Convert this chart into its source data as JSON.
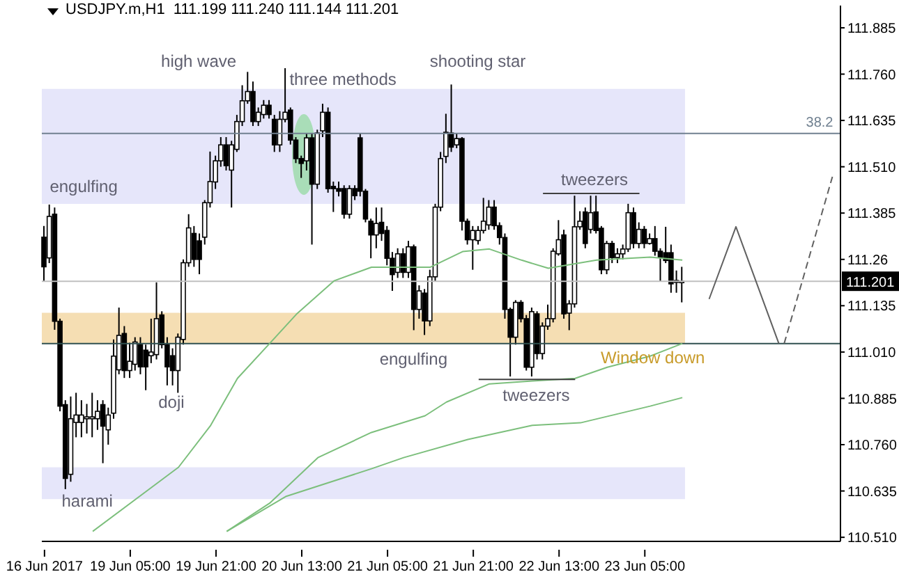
{
  "chart_data": {
    "type": "candlestick",
    "title": "USDJPY.m,H1  111.199 111.240 111.144 111.201",
    "categories": [
      "16 Jun 2017",
      null,
      null,
      null,
      null,
      null,
      null,
      null,
      null,
      null,
      null,
      null,
      null,
      null,
      null,
      null,
      "19 Jun 05:00",
      null,
      null,
      null,
      null,
      null,
      null,
      null,
      null,
      null,
      null,
      null,
      null,
      null,
      null,
      null,
      "19 Jun 21:00",
      null,
      null,
      null,
      null,
      null,
      null,
      null,
      null,
      null,
      null,
      null,
      null,
      null,
      null,
      null,
      "20 Jun 13:00",
      null,
      null,
      null,
      null,
      null,
      null,
      null,
      null,
      null,
      null,
      null,
      null,
      null,
      null,
      null,
      "21 Jun 05:00",
      null,
      null,
      null,
      null,
      null,
      null,
      null,
      null,
      null,
      null,
      null,
      null,
      null,
      null,
      null,
      "21 Jun 21:00",
      null,
      null,
      null,
      null,
      null,
      null,
      null,
      null,
      null,
      null,
      null,
      null,
      null,
      null,
      null,
      "22 Jun 13:00",
      null,
      null,
      null,
      null,
      null,
      null,
      null,
      null,
      null,
      null,
      null,
      null,
      null,
      null,
      null,
      "23 Jun 05:00",
      null,
      null,
      null,
      null,
      null,
      null,
      null,
      null,
      null,
      null,
      null,
      null,
      null,
      null,
      null,
      null,
      null,
      null,
      null,
      null,
      null,
      null,
      null,
      null,
      null,
      null,
      null,
      null,
      null,
      null,
      null,
      null,
      null,
      null,
      null,
      null
    ],
    "ohlc": [
      [
        111.32,
        111.35,
        111.2,
        111.24
      ],
      [
        111.264,
        111.408,
        111.25,
        111.376
      ],
      [
        111.382,
        111.4,
        111.07,
        111.093
      ],
      [
        111.093,
        111.1,
        110.85,
        110.864
      ],
      [
        110.868,
        110.88,
        110.64,
        110.669
      ],
      [
        110.68,
        110.89,
        110.66,
        110.83
      ],
      [
        110.82,
        110.9,
        110.78,
        110.84
      ],
      [
        110.82,
        110.88,
        110.78,
        110.84
      ],
      [
        110.83,
        110.87,
        110.79,
        110.835
      ],
      [
        110.83,
        110.9,
        110.78,
        110.835
      ],
      [
        110.83,
        110.88,
        110.8,
        110.85
      ],
      [
        110.868,
        110.88,
        110.71,
        110.81
      ],
      [
        110.8,
        110.86,
        110.76,
        110.84
      ],
      [
        110.845,
        111.044,
        110.83,
        110.999
      ],
      [
        110.962,
        111.13,
        110.95,
        111.055
      ],
      [
        111.06,
        111.08,
        110.94,
        110.96
      ],
      [
        110.96,
        111.035,
        110.94,
        110.985
      ],
      [
        110.977,
        111.05,
        110.96,
        111.037
      ],
      [
        111.03,
        111.05,
        110.95,
        110.97
      ],
      [
        111.015,
        111.03,
        110.907,
        110.97
      ],
      [
        111.0,
        111.1,
        110.98,
        111.01
      ],
      [
        111.003,
        111.198,
        110.99,
        111.1
      ],
      [
        111.11,
        111.12,
        111.02,
        111.03
      ],
      [
        111.03,
        111.05,
        110.92,
        110.97
      ],
      [
        111.0,
        111.02,
        110.92,
        110.96
      ],
      [
        110.96,
        111.06,
        110.9,
        111.05
      ],
      [
        111.044,
        111.26,
        111.03,
        111.251
      ],
      [
        111.251,
        111.382,
        111.24,
        111.345
      ],
      [
        111.33,
        111.35,
        111.24,
        111.26
      ],
      [
        111.31,
        111.33,
        111.22,
        111.26
      ],
      [
        111.32,
        111.42,
        111.3,
        111.413
      ],
      [
        111.413,
        111.551,
        111.4,
        111.47
      ],
      [
        111.469,
        111.54,
        111.45,
        111.526
      ],
      [
        111.526,
        111.59,
        111.51,
        111.569
      ],
      [
        111.569,
        111.59,
        111.5,
        111.513
      ],
      [
        111.501,
        111.58,
        111.4,
        111.569
      ],
      [
        111.557,
        111.65,
        111.55,
        111.632
      ],
      [
        111.632,
        111.73,
        111.62,
        111.688
      ],
      [
        111.688,
        111.766,
        111.68,
        111.713
      ],
      [
        111.713,
        111.74,
        111.62,
        111.632
      ],
      [
        111.632,
        111.67,
        111.62,
        111.657
      ],
      [
        111.651,
        111.69,
        111.64,
        111.676
      ],
      [
        111.676,
        111.69,
        111.64,
        111.651
      ],
      [
        111.638,
        111.65,
        111.55,
        111.569
      ],
      [
        111.569,
        111.66,
        111.55,
        111.638
      ],
      [
        111.638,
        111.776,
        111.63,
        111.657
      ],
      [
        111.663,
        111.67,
        111.57,
        111.582
      ],
      [
        111.582,
        111.59,
        111.52,
        111.532
      ],
      [
        111.532,
        111.54,
        111.48,
        111.519
      ],
      [
        111.526,
        111.6,
        111.5,
        111.588
      ],
      [
        111.588,
        111.6,
        111.3,
        111.463
      ],
      [
        111.463,
        111.61,
        111.45,
        111.601
      ],
      [
        111.607,
        111.68,
        111.59,
        111.657
      ],
      [
        111.657,
        111.67,
        111.44,
        111.451
      ],
      [
        111.457,
        111.47,
        111.388,
        111.451
      ],
      [
        111.451,
        111.47,
        111.43,
        111.444
      ],
      [
        111.451,
        111.46,
        111.37,
        111.382
      ],
      [
        111.382,
        111.46,
        111.37,
        111.451
      ],
      [
        111.451,
        111.46,
        111.42,
        111.432
      ],
      [
        111.588,
        111.6,
        111.43,
        111.444
      ],
      [
        111.444,
        111.45,
        111.36,
        111.369
      ],
      [
        111.363,
        111.37,
        111.263,
        111.326
      ],
      [
        111.326,
        111.4,
        111.29,
        111.357
      ],
      [
        111.36,
        111.4,
        111.31,
        111.33
      ],
      [
        111.338,
        111.35,
        111.244,
        111.263
      ],
      [
        111.263,
        111.28,
        111.175,
        111.219
      ],
      [
        111.225,
        111.29,
        111.21,
        111.275
      ],
      [
        111.275,
        111.29,
        111.21,
        111.225
      ],
      [
        111.225,
        111.31,
        111.21,
        111.294
      ],
      [
        111.294,
        111.3,
        111.069,
        111.125
      ],
      [
        111.125,
        111.19,
        111.1,
        111.175
      ],
      [
        111.169,
        111.18,
        111.056,
        111.094
      ],
      [
        111.094,
        111.232,
        111.08,
        111.213
      ],
      [
        111.213,
        111.41,
        111.2,
        111.401
      ],
      [
        111.401,
        111.55,
        111.39,
        111.532
      ],
      [
        111.538,
        111.653,
        111.52,
        111.603
      ],
      [
        111.601,
        111.732,
        111.55,
        111.563
      ],
      [
        111.569,
        111.6,
        111.56,
        111.586
      ],
      [
        111.586,
        111.59,
        111.338,
        111.363
      ],
      [
        111.363,
        111.37,
        111.3,
        111.313
      ],
      [
        111.313,
        111.35,
        111.232,
        111.338
      ],
      [
        111.311,
        111.35,
        111.3,
        111.338
      ],
      [
        111.338,
        111.426,
        111.33,
        111.363
      ],
      [
        111.353,
        111.42,
        111.34,
        111.401
      ],
      [
        111.401,
        111.42,
        111.34,
        111.351
      ],
      [
        111.351,
        111.36,
        111.3,
        111.319
      ],
      [
        111.319,
        111.33,
        111.1,
        111.125
      ],
      [
        111.125,
        111.13,
        110.944,
        111.05
      ],
      [
        111.05,
        111.15,
        111.03,
        111.144
      ],
      [
        111.144,
        111.15,
        111.09,
        111.1
      ],
      [
        111.1,
        111.11,
        110.96,
        110.969
      ],
      [
        110.969,
        111.13,
        110.944,
        111.119
      ],
      [
        111.113,
        111.12,
        110.99,
        111.006
      ],
      [
        111.006,
        111.09,
        110.99,
        111.08
      ],
      [
        111.08,
        111.138,
        111.07,
        111.1
      ],
      [
        111.1,
        111.29,
        111.09,
        111.282
      ],
      [
        111.275,
        111.366,
        111.27,
        111.313
      ],
      [
        111.326,
        111.34,
        111.1,
        111.113
      ],
      [
        111.115,
        111.15,
        111.069,
        111.14
      ],
      [
        111.14,
        111.432,
        111.13,
        111.348
      ],
      [
        111.348,
        111.39,
        111.34,
        111.363
      ],
      [
        111.388,
        111.4,
        111.29,
        111.303
      ],
      [
        111.341,
        111.432,
        111.33,
        111.386
      ],
      [
        111.388,
        111.432,
        111.33,
        111.338
      ],
      [
        111.344,
        111.35,
        111.22,
        111.232
      ],
      [
        111.232,
        111.31,
        111.22,
        111.303
      ],
      [
        111.303,
        111.31,
        111.25,
        111.265
      ],
      [
        111.265,
        111.29,
        111.25,
        111.275
      ],
      [
        111.275,
        111.3,
        111.26,
        111.288
      ],
      [
        111.288,
        111.41,
        111.28,
        111.386
      ],
      [
        111.386,
        111.4,
        111.29,
        111.303
      ],
      [
        111.303,
        111.36,
        111.29,
        111.341
      ],
      [
        111.341,
        111.35,
        111.29,
        111.303
      ],
      [
        111.303,
        111.33,
        111.3,
        111.316
      ],
      [
        111.316,
        111.35,
        111.27,
        111.282
      ],
      [
        111.282,
        111.29,
        111.2,
        111.265
      ],
      [
        111.278,
        111.348,
        111.25,
        111.257
      ],
      [
        111.278,
        111.3,
        111.17,
        111.194
      ],
      [
        111.203,
        111.23,
        111.17,
        111.198
      ],
      [
        111.199,
        111.24,
        111.144,
        111.201
      ],
      null,
      null,
      null,
      null,
      null,
      null,
      null,
      null,
      null,
      null,
      null,
      null,
      null,
      null,
      null,
      null,
      null,
      null,
      null,
      null,
      null,
      null,
      null,
      null,
      null,
      null,
      null,
      null,
      null
    ],
    "series": [
      {
        "type": "line",
        "color": "#7cbf7c",
        "values": [
          null,
          null,
          null,
          null,
          null,
          null,
          null,
          null,
          null,
          110.526,
          null,
          null,
          null,
          null,
          null,
          null,
          null,
          null,
          null,
          null,
          null,
          null,
          null,
          null,
          null,
          110.699,
          null,
          null,
          null,
          null,
          null,
          110.812,
          null,
          null,
          null,
          null,
          110.939,
          null,
          null,
          null,
          null,
          null,
          111.033,
          null,
          null,
          null,
          null,
          111.112,
          null,
          null,
          null,
          null,
          null,
          null,
          111.202,
          null,
          null,
          null,
          null,
          null,
          null,
          111.239,
          null,
          null,
          null,
          null,
          null,
          null,
          null,
          null,
          null,
          null,
          111.239,
          null,
          null,
          null,
          null,
          null,
          111.281,
          null,
          null,
          null,
          null,
          111.288,
          null,
          null,
          null,
          null,
          null,
          111.258,
          null,
          null,
          null,
          null,
          111.236,
          null,
          null,
          null,
          null,
          null,
          null,
          null,
          null,
          111.258,
          null,
          null,
          null,
          null,
          null,
          null,
          null,
          null,
          null,
          111.266,
          null,
          null,
          null,
          null,
          null,
          111.258,
          null,
          null,
          null,
          null,
          null,
          null,
          null,
          null,
          null,
          null,
          null,
          null,
          null,
          null,
          null,
          null,
          null,
          null,
          null,
          null,
          null,
          null,
          null,
          null,
          null,
          null,
          null,
          null,
          null
        ]
      },
      {
        "type": "line",
        "color": "#7cbf7c",
        "values": [
          null,
          null,
          null,
          null,
          null,
          null,
          null,
          null,
          null,
          null,
          null,
          null,
          null,
          null,
          null,
          null,
          null,
          null,
          null,
          null,
          null,
          null,
          null,
          null,
          null,
          null,
          null,
          null,
          null,
          null,
          null,
          null,
          null,
          null,
          110.526,
          null,
          null,
          null,
          null,
          null,
          null,
          null,
          110.602,
          null,
          null,
          null,
          null,
          null,
          null,
          null,
          null,
          110.725,
          null,
          null,
          null,
          null,
          null,
          null,
          null,
          null,
          null,
          110.793,
          null,
          null,
          null,
          null,
          null,
          null,
          null,
          null,
          null,
          110.838,
          null,
          null,
          null,
          110.875,
          null,
          null,
          null,
          null,
          null,
          null,
          null,
          110.924,
          null,
          null,
          null,
          null,
          null,
          null,
          null,
          110.932,
          null,
          null,
          null,
          null,
          null,
          null,
          null,
          110.939,
          null,
          null,
          null,
          null,
          null,
          110.969,
          null,
          null,
          null,
          null,
          null,
          null,
          null,
          110.999,
          null,
          null,
          null,
          null,
          null,
          111.033,
          null,
          null,
          null,
          null,
          null,
          null,
          null,
          null,
          null,
          null,
          null,
          null,
          null,
          null,
          null,
          null,
          null,
          null,
          null,
          null,
          null,
          null,
          null,
          null,
          null,
          null,
          null,
          null,
          null
        ]
      },
      {
        "type": "line",
        "color": "#7cbf7c",
        "values": [
          null,
          null,
          null,
          null,
          null,
          null,
          null,
          null,
          null,
          null,
          null,
          null,
          null,
          null,
          null,
          null,
          null,
          null,
          null,
          null,
          null,
          null,
          null,
          null,
          null,
          null,
          null,
          null,
          null,
          null,
          null,
          null,
          null,
          null,
          110.526,
          null,
          null,
          null,
          null,
          null,
          null,
          null,
          null,
          null,
          null,
          110.62,
          null,
          null,
          null,
          null,
          null,
          null,
          null,
          null,
          null,
          null,
          null,
          null,
          null,
          null,
          null,
          110.695,
          null,
          null,
          null,
          null,
          null,
          110.725,
          null,
          null,
          null,
          null,
          null,
          null,
          null,
          null,
          null,
          null,
          null,
          110.774,
          null,
          null,
          null,
          null,
          null,
          null,
          null,
          null,
          null,
          null,
          null,
          110.812,
          null,
          null,
          null,
          null,
          null,
          null,
          null,
          null,
          110.819,
          null,
          null,
          null,
          null,
          null,
          null,
          null,
          null,
          null,
          null,
          null,
          null,
          110.864,
          null,
          null,
          null,
          null,
          null,
          110.887,
          null,
          null,
          null,
          null,
          null,
          null,
          null,
          null,
          null,
          null,
          null,
          null,
          null,
          null,
          null,
          null,
          null,
          null,
          null,
          null,
          null,
          null,
          null,
          null,
          null,
          null,
          null,
          null,
          null
        ]
      },
      {
        "type": "line",
        "color": "#404040",
        "values": [
          null,
          null,
          null,
          null,
          null,
          null,
          null,
          null,
          null,
          null,
          null,
          null,
          null,
          null,
          null,
          null,
          null,
          null,
          null,
          null,
          null,
          null,
          null,
          null,
          null,
          null,
          null,
          null,
          null,
          null,
          null,
          null,
          null,
          null,
          null,
          null,
          null,
          null,
          null,
          null,
          null,
          null,
          null,
          null,
          null,
          null,
          null,
          null,
          null,
          null,
          null,
          null,
          null,
          null,
          null,
          null,
          null,
          null,
          null,
          null,
          null,
          null,
          null,
          null,
          null,
          null,
          null,
          null,
          null,
          null,
          null,
          null,
          null,
          null,
          null,
          null,
          null,
          null,
          null,
          null,
          null,
          null,
          null,
          null,
          null,
          null,
          null,
          null,
          null,
          null,
          null,
          null,
          null,
          111.438,
          null,
          null,
          null,
          null,
          null,
          null,
          null,
          null,
          null,
          null,
          null,
          null,
          null,
          null,
          null,
          null,
          null,
          111.438,
          null,
          null,
          null,
          null,
          null,
          null,
          null,
          null,
          null,
          null,
          null,
          null,
          null,
          null,
          null,
          null,
          null,
          null,
          null,
          null,
          null,
          null,
          null,
          null,
          null,
          null,
          null,
          null,
          null,
          null,
          null,
          null,
          null,
          null,
          null,
          null,
          null
        ]
      },
      {
        "type": "line",
        "color": "#404040",
        "values": [
          null,
          null,
          null,
          null,
          null,
          null,
          null,
          null,
          null,
          null,
          null,
          null,
          null,
          null,
          null,
          null,
          null,
          null,
          null,
          null,
          null,
          null,
          null,
          null,
          null,
          null,
          null,
          null,
          null,
          null,
          null,
          null,
          null,
          null,
          null,
          null,
          null,
          null,
          null,
          null,
          null,
          null,
          null,
          null,
          null,
          null,
          null,
          null,
          null,
          null,
          null,
          null,
          null,
          null,
          null,
          null,
          null,
          null,
          null,
          null,
          null,
          null,
          null,
          null,
          null,
          null,
          null,
          null,
          null,
          null,
          null,
          null,
          null,
          null,
          null,
          null,
          null,
          null,
          null,
          null,
          null,
          110.936,
          null,
          null,
          null,
          null,
          null,
          null,
          null,
          null,
          null,
          null,
          null,
          null,
          null,
          null,
          null,
          null,
          null,
          110.936,
          null,
          null,
          null,
          null,
          null,
          null,
          null,
          null,
          null,
          null,
          null,
          null,
          null,
          null,
          null,
          null,
          null,
          null,
          null,
          null,
          null,
          null,
          null,
          null,
          null,
          null,
          null,
          null,
          null,
          null,
          null,
          null,
          null,
          null,
          null,
          null,
          null,
          null,
          null,
          null,
          null,
          null,
          null,
          null,
          null,
          null,
          null,
          null,
          null
        ]
      },
      {
        "type": "line",
        "color": "#606060",
        "line_style": "solid",
        "values": [
          null,
          null,
          null,
          null,
          null,
          null,
          null,
          null,
          null,
          null,
          null,
          null,
          null,
          null,
          null,
          null,
          null,
          null,
          null,
          null,
          null,
          null,
          null,
          null,
          null,
          null,
          null,
          null,
          null,
          null,
          null,
          null,
          null,
          null,
          null,
          null,
          null,
          null,
          null,
          null,
          null,
          null,
          null,
          null,
          null,
          null,
          null,
          null,
          null,
          null,
          null,
          null,
          null,
          null,
          null,
          null,
          null,
          null,
          null,
          null,
          null,
          null,
          null,
          null,
          null,
          null,
          null,
          null,
          null,
          null,
          null,
          null,
          null,
          null,
          null,
          null,
          null,
          null,
          null,
          null,
          null,
          null,
          null,
          null,
          null,
          null,
          null,
          null,
          null,
          null,
          null,
          null,
          null,
          null,
          null,
          null,
          null,
          null,
          null,
          null,
          null,
          null,
          null,
          null,
          null,
          null,
          null,
          null,
          null,
          null,
          null,
          null,
          null,
          null,
          null,
          null,
          null,
          null,
          null,
          null,
          null,
          null,
          null,
          null,
          111.153,
          null,
          null,
          null,
          null,
          111.348,
          null,
          null,
          null,
          null,
          null,
          null,
          null,
          111.033,
          null,
          null,
          null,
          null,
          null,
          null,
          null,
          null,
          null,
          null,
          null
        ]
      },
      {
        "type": "line",
        "color": "#606060",
        "line_style": "dashed",
        "values": [
          null,
          null,
          null,
          null,
          null,
          null,
          null,
          null,
          null,
          null,
          null,
          null,
          null,
          null,
          null,
          null,
          null,
          null,
          null,
          null,
          null,
          null,
          null,
          null,
          null,
          null,
          null,
          null,
          null,
          null,
          null,
          null,
          null,
          null,
          null,
          null,
          null,
          null,
          null,
          null,
          null,
          null,
          null,
          null,
          null,
          null,
          null,
          null,
          null,
          null,
          null,
          null,
          null,
          null,
          null,
          null,
          null,
          null,
          null,
          null,
          null,
          null,
          null,
          null,
          null,
          null,
          null,
          null,
          null,
          null,
          null,
          null,
          null,
          null,
          null,
          null,
          null,
          null,
          null,
          null,
          null,
          null,
          null,
          null,
          null,
          null,
          null,
          null,
          null,
          null,
          null,
          null,
          null,
          null,
          null,
          null,
          null,
          null,
          null,
          null,
          null,
          null,
          null,
          null,
          null,
          null,
          null,
          null,
          null,
          null,
          null,
          null,
          null,
          null,
          null,
          null,
          null,
          null,
          null,
          null,
          null,
          null,
          null,
          null,
          null,
          null,
          null,
          null,
          null,
          null,
          null,
          null,
          null,
          null,
          null,
          null,
          null,
          null,
          111.033,
          null,
          null,
          null,
          null,
          null,
          null,
          null,
          null,
          111.483,
          null
        ]
      }
    ],
    "ylim": [
      110.499,
      111.945
    ],
    "yticks": [
      {
        "value": 110.51,
        "label": "110.510"
      },
      110.635,
      {
        "value": 110.76,
        "label": "110.760"
      },
      110.885,
      {
        "value": 111.01,
        "label": "111.010"
      },
      111.135,
      111.26,
      111.385,
      {
        "value": 111.51,
        "label": "111.510"
      },
      111.635,
      {
        "value": 111.76,
        "label": "111.760"
      },
      111.885
    ],
    "bands": [
      {
        "axis": "y",
        "from": 111.41,
        "to": 111.72,
        "color": "#e6e6fa"
      },
      {
        "axis": "y",
        "from": 110.613,
        "to": 110.699,
        "color": "#e6e6fa"
      },
      {
        "axis": "y",
        "from": 111.033,
        "to": 111.116,
        "color": "#f5deb3"
      }
    ],
    "ref_lines": [
      {
        "axis": "y",
        "value": 111.6,
        "color": "#708090"
      },
      {
        "axis": "y",
        "value": 111.201,
        "label": "111.201",
        "color": "#c0c0c0"
      },
      {
        "axis": "y",
        "value": 111.033,
        "color": "#2f4f4f"
      }
    ],
    "annotations": [
      "high wave",
      "three methods",
      "shooting star",
      "engulfing",
      "engulfing",
      {
        "text": "doji",
        "y": 110.92
      },
      "harami",
      {
        "text": "tweezers",
        "y": 111.438
      },
      "tweezers",
      "Window down",
      {
        "text": "38.2",
        "y": 111.6
      }
    ]
  }
}
